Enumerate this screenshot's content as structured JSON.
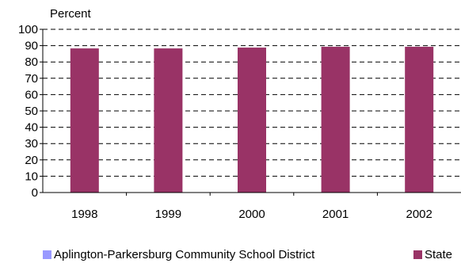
{
  "chart_data": {
    "type": "bar",
    "ylabel": "Percent",
    "ylim": [
      0,
      100
    ],
    "yticks": [
      0,
      10,
      20,
      30,
      40,
      50,
      60,
      70,
      80,
      90,
      100
    ],
    "categories": [
      "1998",
      "1999",
      "2000",
      "2001",
      "2002"
    ],
    "series": [
      {
        "name": "Aplington-Parkersburg Community School District",
        "color": "#9999ff",
        "values": [
          null,
          null,
          null,
          null,
          null
        ]
      },
      {
        "name": "State",
        "color": "#993366",
        "values": [
          88.3,
          88.3,
          88.8,
          89.3,
          89.3
        ]
      }
    ],
    "grid": "horizontal dashed",
    "legend": "bottom"
  }
}
